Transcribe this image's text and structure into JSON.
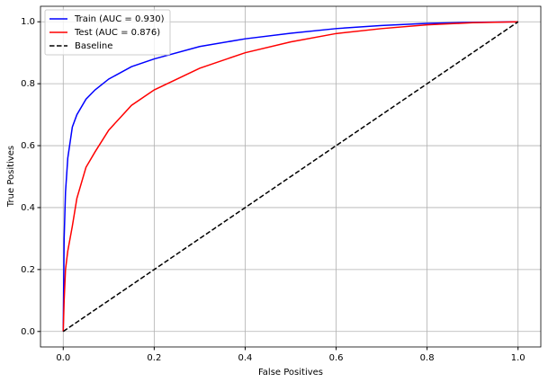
{
  "chart_data": {
    "type": "line",
    "x_label": "False Positives",
    "y_label": "True Positives",
    "x": [
      0,
      0.002,
      0.005,
      0.01,
      0.02,
      0.03,
      0.05,
      0.07,
      0.1,
      0.15,
      0.2,
      0.3,
      0.4,
      0.5,
      0.6,
      0.7,
      0.8,
      0.9,
      1.0
    ],
    "series": [
      {
        "name": "Train (AUC = 0.930)",
        "color": "#0000ff",
        "linestyle": "solid",
        "values": [
          0,
          0.3,
          0.45,
          0.56,
          0.66,
          0.7,
          0.75,
          0.78,
          0.815,
          0.855,
          0.88,
          0.92,
          0.945,
          0.963,
          0.978,
          0.988,
          0.995,
          0.998,
          1.0
        ]
      },
      {
        "name": "Test (AUC = 0.876)",
        "color": "#ff0000",
        "linestyle": "solid",
        "values": [
          0,
          0.1,
          0.2,
          0.26,
          0.34,
          0.43,
          0.53,
          0.58,
          0.65,
          0.73,
          0.78,
          0.85,
          0.9,
          0.935,
          0.962,
          0.978,
          0.99,
          0.997,
          1.0
        ]
      },
      {
        "name": "Baseline",
        "color": "#000000",
        "linestyle": "dashed",
        "values": [
          0,
          0.002,
          0.005,
          0.01,
          0.02,
          0.03,
          0.05,
          0.07,
          0.1,
          0.15,
          0.2,
          0.3,
          0.4,
          0.5,
          0.6,
          0.7,
          0.8,
          0.9,
          1.0
        ]
      }
    ],
    "xlim": [
      -0.05,
      1.05
    ],
    "ylim": [
      -0.05,
      1.05
    ],
    "xticks": [
      {
        "value": 0,
        "label": "0.0"
      },
      0.2,
      0.4,
      0.6,
      0.8,
      {
        "value": 1,
        "label": "1.0"
      }
    ],
    "yticks": [
      {
        "value": 0,
        "label": "0.0"
      },
      0.2,
      0.4,
      0.6,
      0.8,
      {
        "value": 1,
        "label": "1.0"
      }
    ],
    "grid": true,
    "legend": "upper left"
  }
}
